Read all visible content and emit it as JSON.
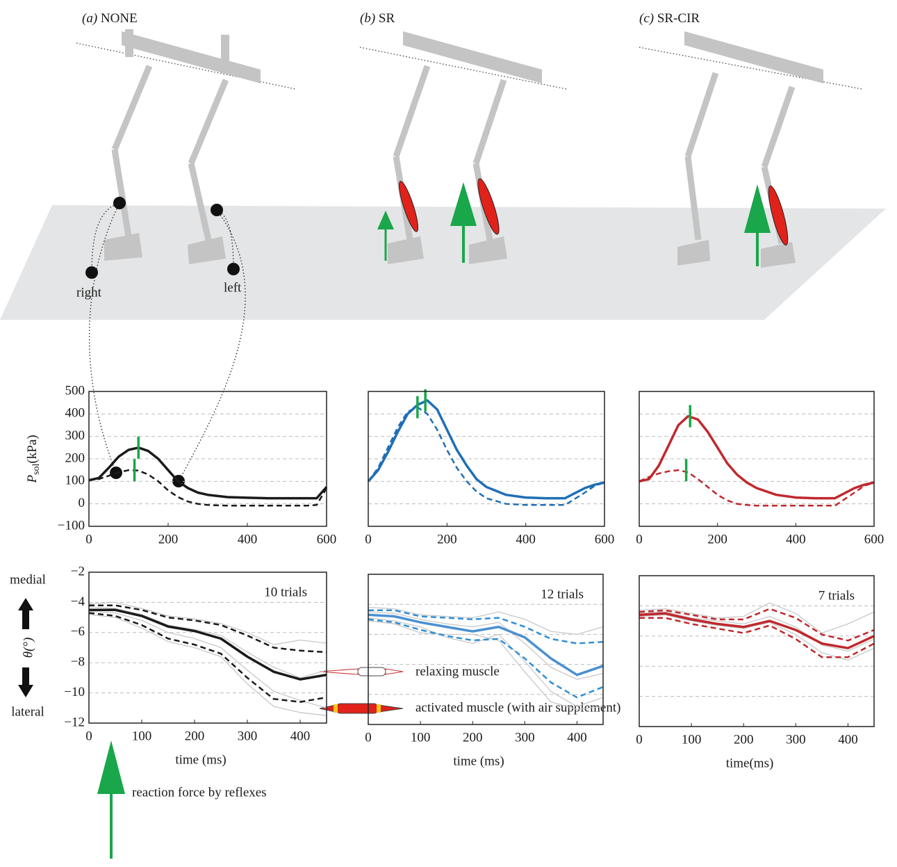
{
  "panels": [
    {
      "label": "(a)",
      "name": "NONE"
    },
    {
      "label": "(b)",
      "name": "SR"
    },
    {
      "label": "(c)",
      "name": "SR-CIR"
    }
  ],
  "leg_labels": [
    "right",
    "left"
  ],
  "legend": {
    "force": "reaction force by reflexes",
    "relaxing": "relaxing muscle",
    "activated": "activated muscle (with air supplement)"
  },
  "chart_data": [
    {
      "type": "line",
      "x": [
        0,
        25,
        50,
        75,
        100,
        125,
        150,
        175,
        200,
        225,
        250,
        275,
        300,
        350,
        400,
        450,
        500,
        550,
        575,
        600
      ],
      "series": [
        {
          "color": "#1a1a1a",
          "style": "solid",
          "values": [
            105,
            115,
            160,
            210,
            240,
            250,
            235,
            200,
            150,
            100,
            70,
            50,
            40,
            30,
            27,
            25,
            25,
            25,
            25,
            75
          ]
        },
        {
          "color": "#1a1a1a",
          "style": "dashed",
          "values": [
            105,
            110,
            125,
            140,
            150,
            148,
            130,
            100,
            60,
            30,
            10,
            0,
            -5,
            -8,
            -8,
            -8,
            -8,
            -8,
            -5,
            70
          ]
        }
      ],
      "markers": [
        {
          "x": 125,
          "y": 250,
          "color": "#1aa64a"
        },
        {
          "x": 115,
          "y": 150,
          "color": "#1aa64a"
        }
      ],
      "xlim": [
        0,
        600
      ],
      "xticks": [
        0,
        200,
        400,
        600
      ],
      "ylim": [
        -100,
        500
      ],
      "yticks": [
        {
          "value": -100,
          "label": "−100"
        },
        0,
        100,
        200,
        300,
        400,
        500
      ],
      "show_ytick_labels": true,
      "ylabel": {
        "symbol": "P",
        "subscript": "sol",
        "unit": "(kPa)"
      }
    },
    {
      "type": "line",
      "x": [
        0,
        25,
        50,
        75,
        100,
        125,
        150,
        175,
        200,
        225,
        250,
        275,
        300,
        350,
        400,
        450,
        500,
        550,
        575,
        600
      ],
      "series": [
        {
          "color": "#1f6fb5",
          "style": "solid",
          "values": [
            100,
            150,
            230,
            320,
            400,
            440,
            460,
            420,
            330,
            240,
            170,
            110,
            75,
            40,
            28,
            25,
            25,
            70,
            85,
            95
          ]
        },
        {
          "color": "#1f6fb5",
          "style": "dashed",
          "values": [
            100,
            160,
            250,
            340,
            410,
            430,
            400,
            330,
            240,
            160,
            100,
            55,
            25,
            0,
            -5,
            -5,
            -5,
            50,
            80,
            95
          ]
        }
      ],
      "markers": [
        {
          "x": 145,
          "y": 460,
          "color": "#1aa64a"
        },
        {
          "x": 125,
          "y": 430,
          "color": "#1aa64a"
        }
      ],
      "xlim": [
        0,
        600
      ],
      "xticks": [
        0,
        200,
        400,
        600
      ],
      "ylim": [
        -100,
        500
      ],
      "yticks": [
        -100,
        0,
        100,
        200,
        300,
        400,
        500
      ],
      "show_ytick_labels": false
    },
    {
      "type": "line",
      "x": [
        0,
        25,
        50,
        75,
        100,
        125,
        150,
        175,
        200,
        225,
        250,
        275,
        300,
        350,
        400,
        450,
        500,
        550,
        575,
        600
      ],
      "series": [
        {
          "color": "#c0282d",
          "style": "solid",
          "values": [
            100,
            110,
            170,
            260,
            350,
            390,
            375,
            320,
            250,
            180,
            130,
            95,
            70,
            40,
            28,
            25,
            25,
            70,
            85,
            95
          ]
        },
        {
          "color": "#c0282d",
          "style": "dashed",
          "values": [
            100,
            120,
            135,
            145,
            150,
            140,
            110,
            75,
            40,
            15,
            0,
            -5,
            -8,
            -8,
            -8,
            -8,
            -8,
            50,
            80,
            95
          ]
        }
      ],
      "markers": [
        {
          "x": 130,
          "y": 390,
          "color": "#1aa64a"
        },
        {
          "x": 120,
          "y": 150,
          "color": "#1aa64a"
        }
      ],
      "xlim": [
        0,
        600
      ],
      "xticks": [
        0,
        200,
        400,
        600
      ],
      "ylim": [
        -100,
        500
      ],
      "yticks": [
        -100,
        0,
        100,
        200,
        300,
        400,
        500
      ],
      "show_ytick_labels": false
    },
    {
      "type": "line",
      "x": [
        0,
        50,
        100,
        150,
        200,
        250,
        300,
        350,
        400,
        450
      ],
      "series": [
        {
          "color": "#c8c8c8",
          "style": "trial",
          "values": [
            -4.1,
            -4.0,
            -4.4,
            -4.9,
            -5.1,
            -5.4,
            -6.0,
            -6.8,
            -6.5,
            -6.7
          ]
        },
        {
          "color": "#c8c8c8",
          "style": "trial",
          "values": [
            -4.6,
            -4.7,
            -5.2,
            -6.0,
            -6.4,
            -7.0,
            -8.5,
            -9.9,
            -10.5,
            -11.0
          ]
        },
        {
          "color": "#c8c8c8",
          "style": "trial",
          "values": [
            -4.3,
            -4.4,
            -4.8,
            -5.5,
            -5.8,
            -6.2,
            -7.3,
            -8.3,
            -9.0,
            -8.5
          ]
        },
        {
          "color": "#c8c8c8",
          "style": "trial",
          "values": [
            -4.8,
            -5.0,
            -5.7,
            -6.6,
            -7.0,
            -7.6,
            -9.4,
            -10.9,
            -11.3,
            -11.5
          ]
        },
        {
          "color": "#1a1a1a",
          "style": "dashed",
          "values": [
            -4.2,
            -4.2,
            -4.5,
            -5.0,
            -5.2,
            -5.5,
            -6.2,
            -7.0,
            -7.2,
            -7.3
          ]
        },
        {
          "color": "#1a1a1a",
          "style": "dashed",
          "values": [
            -4.7,
            -4.9,
            -5.5,
            -6.4,
            -6.8,
            -7.4,
            -9.0,
            -10.4,
            -10.6,
            -10.3
          ]
        },
        {
          "color": "#1a1a1a",
          "style": "solid",
          "values": [
            -4.5,
            -4.5,
            -4.9,
            -5.6,
            -5.9,
            -6.4,
            -7.6,
            -8.6,
            -9.1,
            -8.8
          ]
        }
      ],
      "annotation": "10 trials",
      "xlabel": "time (ms)",
      "xlim": [
        0,
        450
      ],
      "xticks": [
        0,
        100,
        200,
        300,
        400
      ],
      "ylim": [
        -12,
        -2
      ],
      "yticks": [
        {
          "value": -12,
          "label": "−12"
        },
        {
          "value": -10,
          "label": "−10"
        },
        {
          "value": -8,
          "label": "−8"
        },
        {
          "value": -6,
          "label": "−6"
        },
        {
          "value": -4,
          "label": "−4"
        },
        {
          "value": -2,
          "label": "−2"
        }
      ],
      "show_ytick_labels": true,
      "ylabel": "θ(°)",
      "direction_labels": [
        "medial",
        "lateral"
      ]
    },
    {
      "type": "line",
      "x": [
        0,
        50,
        100,
        150,
        200,
        250,
        300,
        350,
        400,
        450
      ],
      "series": [
        {
          "color": "#c8c8c8",
          "style": "trial",
          "values": [
            -4.2,
            -4.3,
            -4.7,
            -4.8,
            -4.9,
            -4.5,
            -5.0,
            -5.8,
            -6.0,
            -5.5
          ]
        },
        {
          "color": "#c8c8c8",
          "style": "trial",
          "values": [
            -4.9,
            -5.1,
            -5.5,
            -6.2,
            -6.6,
            -6.0,
            -7.8,
            -9.8,
            -10.8,
            -10.2
          ]
        },
        {
          "color": "#c8c8c8",
          "style": "trial",
          "values": [
            -4.5,
            -4.6,
            -5.0,
            -5.3,
            -5.5,
            -5.2,
            -6.6,
            -8.2,
            -9.0,
            -8.6
          ]
        },
        {
          "color": "#c8c8c8",
          "style": "trial",
          "values": [
            -5.1,
            -5.3,
            -5.9,
            -6.0,
            -6.0,
            -6.4,
            -8.5,
            -10.5,
            -11.0,
            -10.8
          ]
        },
        {
          "color": "#2e8fd6",
          "style": "dashed",
          "values": [
            -4.4,
            -4.4,
            -4.8,
            -4.9,
            -5.0,
            -4.9,
            -5.5,
            -6.3,
            -6.6,
            -6.5
          ]
        },
        {
          "color": "#2e8fd6",
          "style": "dashed",
          "values": [
            -5.0,
            -5.2,
            -5.7,
            -6.1,
            -6.4,
            -6.3,
            -7.6,
            -9.2,
            -10.2,
            -9.5
          ]
        },
        {
          "color": "#4a90d0",
          "style": "solid",
          "values": [
            -4.7,
            -4.8,
            -5.2,
            -5.5,
            -5.8,
            -5.5,
            -6.2,
            -7.6,
            -8.7,
            -8.1
          ]
        }
      ],
      "annotation": "12 trials",
      "xlabel": "time (ms)",
      "xlim": [
        0,
        450
      ],
      "xticks": [
        0,
        100,
        200,
        300,
        400
      ],
      "ylim": [
        -12,
        -2
      ],
      "yticks": [
        -12,
        -10,
        -8,
        -6,
        -4,
        -2
      ],
      "show_ytick_labels": false
    },
    {
      "type": "line",
      "x": [
        0,
        50,
        100,
        150,
        200,
        250,
        300,
        350,
        400,
        450
      ],
      "series": [
        {
          "color": "#c8c8c8",
          "style": "trial",
          "values": [
            -4.3,
            -4.2,
            -4.5,
            -4.8,
            -4.7,
            -3.8,
            -4.5,
            -5.8,
            -5.2,
            -4.4
          ]
        },
        {
          "color": "#c8c8c8",
          "style": "trial",
          "values": [
            -4.7,
            -4.6,
            -5.0,
            -5.3,
            -5.5,
            -5.1,
            -5.9,
            -7.1,
            -7.6,
            -6.8
          ]
        },
        {
          "color": "#c8c8c8",
          "style": "trial",
          "values": [
            -4.5,
            -4.4,
            -4.8,
            -5.0,
            -5.2,
            -4.7,
            -5.4,
            -6.6,
            -7.0,
            -6.2
          ]
        },
        {
          "color": "#c0282d",
          "style": "dashed",
          "values": [
            -4.4,
            -4.3,
            -4.6,
            -4.9,
            -4.9,
            -4.2,
            -4.8,
            -5.9,
            -6.3,
            -5.6
          ]
        },
        {
          "color": "#c0282d",
          "style": "dashed",
          "values": [
            -4.8,
            -4.8,
            -5.2,
            -5.5,
            -5.8,
            -5.3,
            -6.2,
            -7.4,
            -7.4,
            -6.5
          ]
        },
        {
          "color": "#c0282d",
          "style": "solid",
          "values": [
            -4.6,
            -4.5,
            -4.9,
            -5.2,
            -5.4,
            -5.0,
            -5.6,
            -6.5,
            -6.8,
            -6.0
          ]
        }
      ],
      "annotation": "7 trials",
      "xlabel": "time(ms)",
      "xlim": [
        0,
        450
      ],
      "xticks": [
        0,
        100,
        200,
        300,
        400
      ],
      "ylim": [
        -12,
        -2
      ],
      "yticks": [
        -12,
        -10,
        -8,
        -6,
        -4,
        -2
      ],
      "show_ytick_labels": false
    }
  ]
}
